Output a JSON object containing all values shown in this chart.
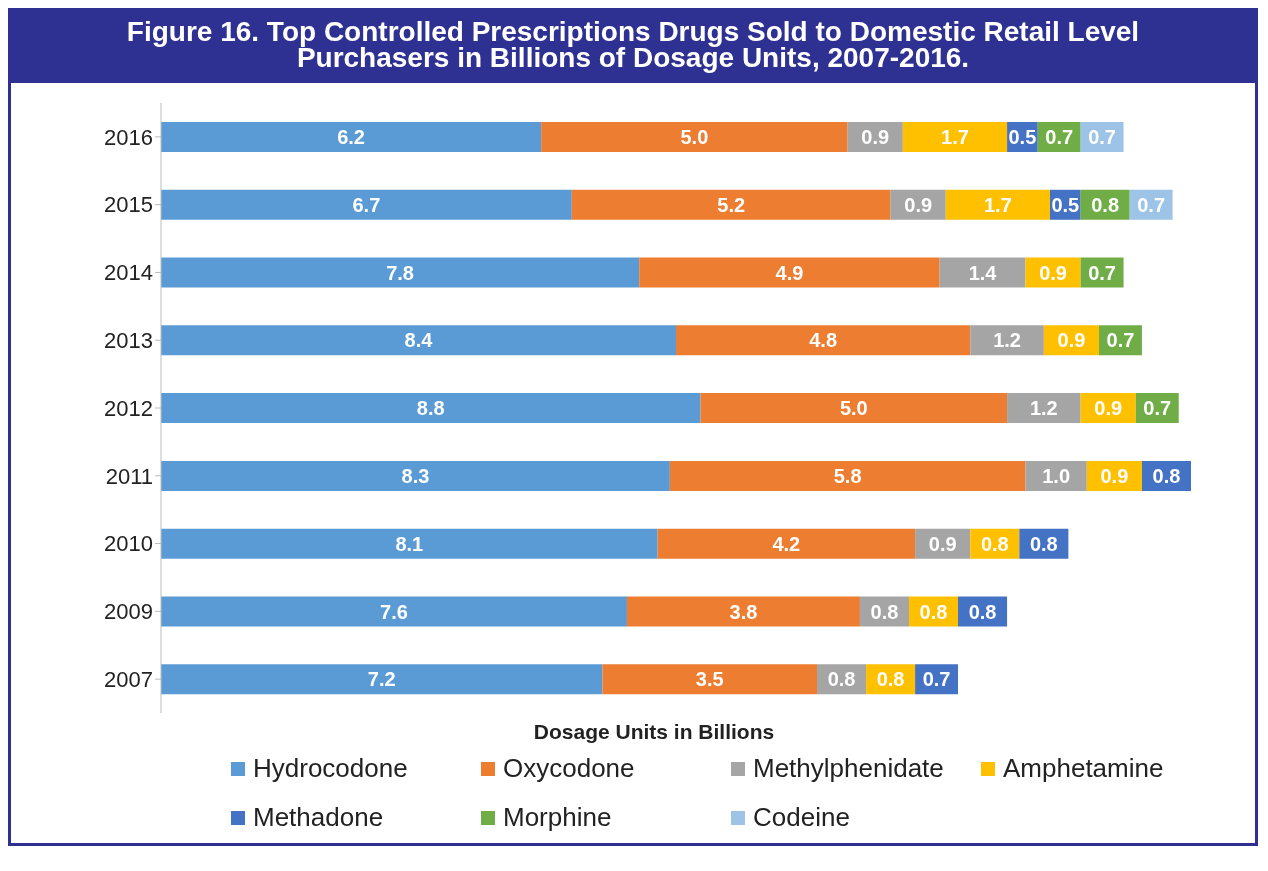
{
  "chart_data": {
    "type": "bar",
    "orientation": "horizontal",
    "stacked": true,
    "title": "Figure 16. Top Controlled Prescriptions Drugs Sold to Domestic Retail Level Purchasers in Billions of Dosage Units, 2007-2016.",
    "xlabel": "Dosage Units in Billions",
    "categories": [
      "2016",
      "2015",
      "2014",
      "2013",
      "2012",
      "2011",
      "2010",
      "2009",
      "2007"
    ],
    "legend": "bottom",
    "grid": false,
    "series": [
      {
        "name": "Hydrocodone",
        "color": "#5b9bd5",
        "values": [
          6.2,
          6.7,
          7.8,
          8.4,
          8.8,
          8.3,
          8.1,
          7.6,
          7.2
        ],
        "value_labels": [
          "6.2",
          "6.7",
          "7.8",
          "8.4",
          "8.8",
          "8.3",
          "8.1",
          "7.6",
          "7.2"
        ]
      },
      {
        "name": "Oxycodone",
        "color": "#ed7d31",
        "values": [
          5.0,
          5.2,
          4.9,
          4.8,
          5.0,
          5.8,
          4.2,
          3.8,
          3.5
        ],
        "value_labels": [
          "5.0",
          "5.2",
          "4.9",
          "4.8",
          "5.0",
          "5.8",
          "4.2",
          "3.8",
          "3.5"
        ]
      },
      {
        "name": "Methylphenidate",
        "color": "#a5a5a5",
        "values": [
          0.9,
          0.9,
          1.4,
          1.2,
          1.2,
          1.0,
          0.9,
          0.8,
          0.8
        ],
        "value_labels": [
          "0.9",
          "0.9",
          "1.4",
          "1.2",
          "1.2",
          "1.0",
          "0.9",
          "0.8",
          "0.8"
        ]
      },
      {
        "name": "Amphetamine",
        "color": "#ffc000",
        "values": [
          1.7,
          1.7,
          0.9,
          0.9,
          0.9,
          0.9,
          0.8,
          0.8,
          0.8
        ],
        "value_labels": [
          "1.7",
          "1.7",
          "0.9",
          "0.9",
          "0.9",
          "0.9",
          "0.8",
          "0.8",
          "0.8"
        ]
      },
      {
        "name": "Methadone",
        "color": "#4472c4",
        "values": [
          0.5,
          0.5,
          null,
          null,
          null,
          0.8,
          0.8,
          0.8,
          0.7
        ],
        "value_labels": [
          "0.5",
          "0.5",
          null,
          null,
          null,
          "0.8",
          "0.8",
          "0.8",
          "0.7"
        ]
      },
      {
        "name": "Morphine",
        "color": "#70ad47",
        "values": [
          0.7,
          0.8,
          0.7,
          0.7,
          0.7,
          null,
          null,
          null,
          null
        ],
        "value_labels": [
          "0.7",
          "0.8",
          "0.7",
          "0.7",
          "0.7",
          null,
          null,
          null,
          null
        ]
      },
      {
        "name": "Codeine",
        "color": "#9dc3e6",
        "values": [
          0.7,
          0.7,
          null,
          null,
          null,
          null,
          null,
          null,
          null
        ],
        "value_labels": [
          "0.7",
          "0.7",
          null,
          null,
          null,
          null,
          null,
          null,
          null
        ]
      }
    ]
  }
}
